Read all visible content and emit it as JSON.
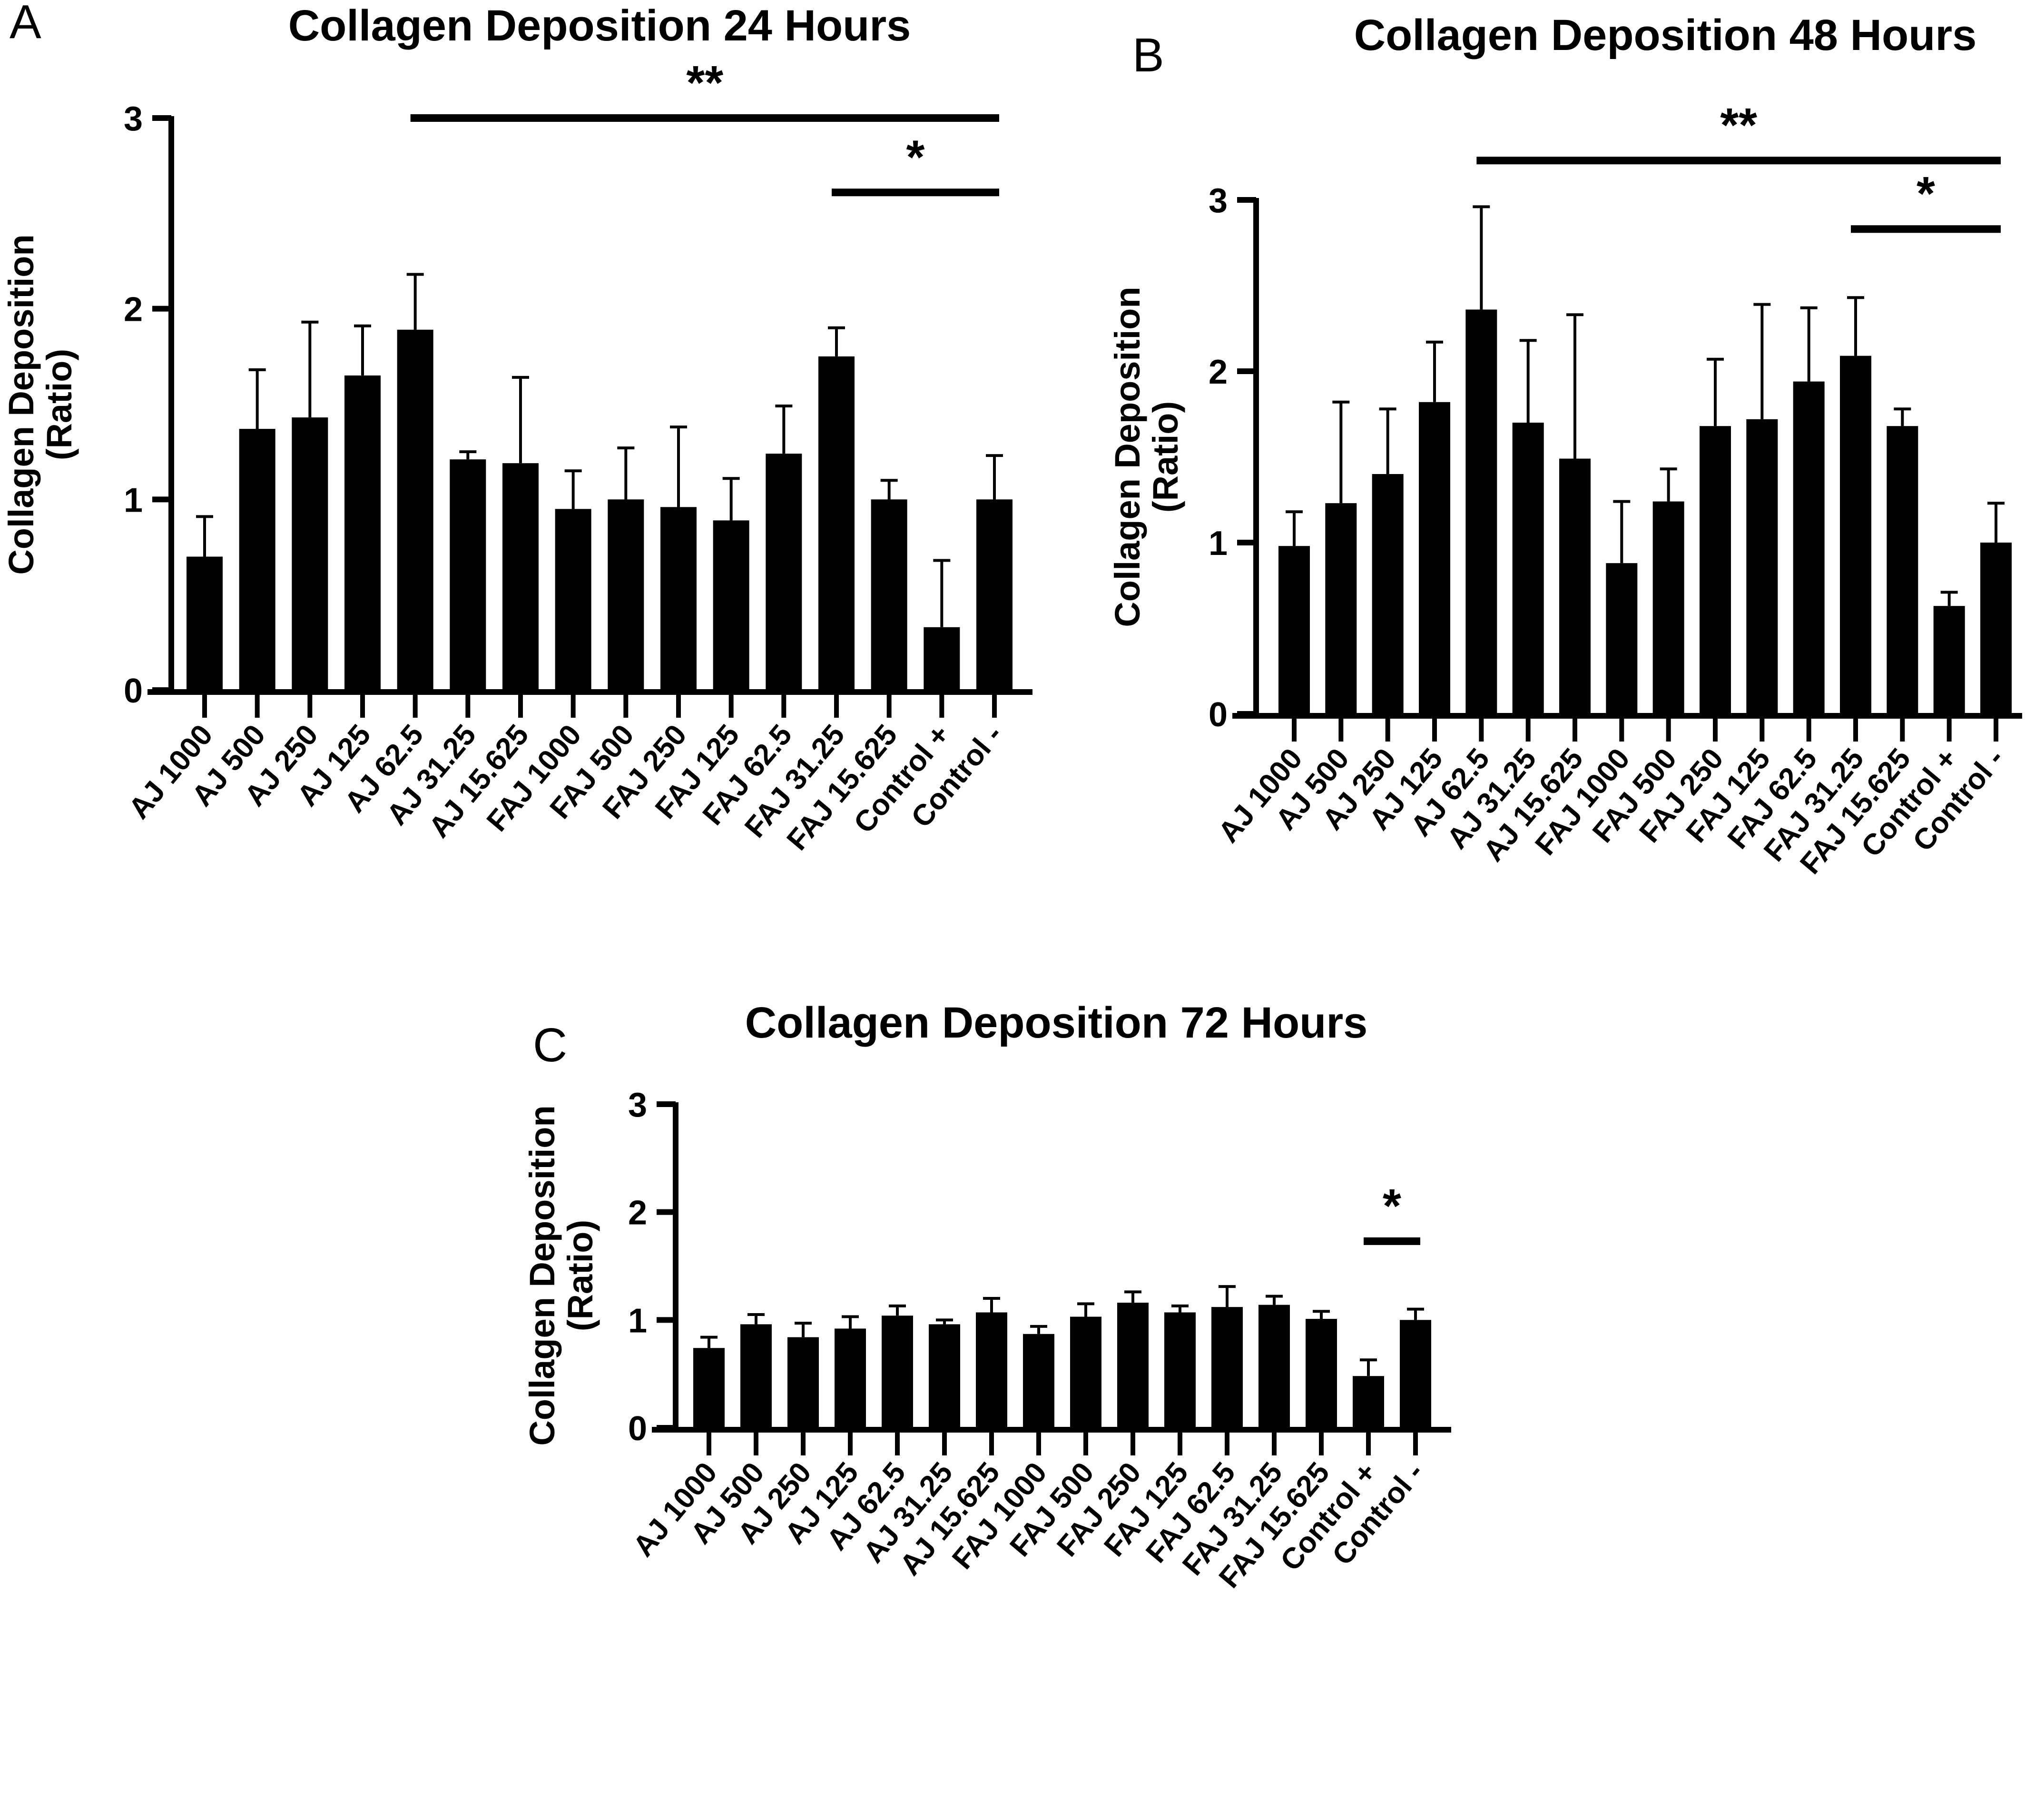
{
  "chart_data": [
    {
      "panel": "A",
      "type": "bar",
      "title": "Collagen Deposition 24 Hours",
      "xlabel": "",
      "ylabel": "Collagen Deposition (Ratio)",
      "ylabel_lines": [
        "Collagen Deposition",
        "(Ratio)"
      ],
      "ylim": [
        0,
        3
      ],
      "yticks": [
        0,
        1,
        2,
        3
      ],
      "grid": false,
      "categories": [
        "AJ 1000",
        "AJ 500",
        "AJ 250",
        "AJ 125",
        "AJ 62.5",
        "AJ 31.25",
        "AJ 15.625",
        "FAJ 1000",
        "FAJ 500",
        "FAJ 250",
        "FAJ 125",
        "FAJ 62.5",
        "FAJ 31.25",
        "FAJ 15.625",
        "Control +",
        "Control -"
      ],
      "values": [
        0.7,
        1.37,
        1.43,
        1.65,
        1.89,
        1.21,
        1.19,
        0.95,
        1.0,
        0.96,
        0.89,
        1.24,
        1.75,
        1.0,
        0.33,
        1.0
      ],
      "error_upper": [
        0.91,
        1.68,
        1.93,
        1.91,
        2.18,
        1.25,
        1.64,
        1.15,
        1.27,
        1.38,
        1.11,
        1.49,
        1.9,
        1.1,
        0.68,
        1.23
      ],
      "significance": [
        {
          "label": "**",
          "from": "AJ 62.5",
          "to": "Control -",
          "level": 3.0
        },
        {
          "label": "*",
          "from": "FAJ 31.25",
          "to": "Control -",
          "level": 2.61
        }
      ]
    },
    {
      "panel": "B",
      "type": "bar",
      "title": "Collagen Deposition 48 Hours",
      "xlabel": "",
      "ylabel": "Collagen Deposition (Ratio)",
      "ylabel_lines": [
        "Collagen Deposition",
        "(Ratio)"
      ],
      "ylim": [
        0,
        3
      ],
      "yticks": [
        0,
        1,
        2,
        3
      ],
      "grid": false,
      "categories": [
        "AJ 1000",
        "AJ 500",
        "AJ 250",
        "AJ 125",
        "AJ 62.5",
        "AJ 31.25",
        "AJ 15.625",
        "FAJ 1000",
        "FAJ 500",
        "FAJ 250",
        "FAJ 125",
        "FAJ 62.5",
        "FAJ 31.25",
        "FAJ 15.625",
        "Control +",
        "Control -"
      ],
      "values": [
        0.98,
        1.23,
        1.4,
        1.82,
        2.36,
        1.7,
        1.49,
        0.88,
        1.24,
        1.68,
        1.72,
        1.94,
        2.09,
        1.68,
        0.63,
        1.0
      ],
      "error_upper": [
        1.18,
        1.82,
        1.78,
        2.17,
        2.96,
        2.18,
        2.33,
        1.24,
        1.43,
        2.07,
        2.39,
        2.37,
        2.43,
        1.78,
        0.71,
        1.23
      ],
      "significance": [
        {
          "label": "**",
          "from": "AJ 62.5",
          "to": "Control -",
          "level": 3.23
        },
        {
          "label": "*",
          "from": "FAJ 31.25",
          "to": "Control -",
          "level": 2.83
        }
      ]
    },
    {
      "panel": "C",
      "type": "bar",
      "title": "Collagen Deposition 72 Hours",
      "xlabel": "",
      "ylabel": "Collagen Deposition (Ratio)",
      "ylabel_lines": [
        "Collagen Deposition",
        "(Ratio)"
      ],
      "ylim": [
        0,
        3
      ],
      "yticks": [
        0,
        1,
        2,
        3
      ],
      "grid": false,
      "categories": [
        "AJ 1000",
        "AJ 500",
        "AJ 250",
        "AJ 125",
        "AJ 62.5",
        "AJ 31.25",
        "AJ 15.625",
        "FAJ 1000",
        "FAJ 500",
        "FAJ 250",
        "FAJ 125",
        "FAJ 62.5",
        "FAJ 31.25",
        "FAJ 15.625",
        "Control +",
        "Control -"
      ],
      "values": [
        0.74,
        0.96,
        0.84,
        0.92,
        1.04,
        0.96,
        1.07,
        0.87,
        1.03,
        1.16,
        1.07,
        1.12,
        1.14,
        1.01,
        0.48,
        1.0
      ],
      "error_upper": [
        0.84,
        1.05,
        0.97,
        1.03,
        1.13,
        1.0,
        1.2,
        0.94,
        1.15,
        1.26,
        1.13,
        1.31,
        1.22,
        1.08,
        0.63,
        1.1
      ],
      "significance": [
        {
          "label": "*",
          "from": "Control +",
          "to": "Control -",
          "level": 1.73
        }
      ]
    }
  ],
  "panels": {
    "a": {
      "letter": "A",
      "title": "Collagen Deposition 24 Hours",
      "ylabel_line1": "Collagen Deposition",
      "ylabel_line2": "(Ratio)"
    },
    "b": {
      "letter": "B",
      "title": "Collagen Deposition 48 Hours",
      "ylabel_line1": "Collagen Deposition",
      "ylabel_line2": "(Ratio)"
    },
    "c": {
      "letter": "C",
      "title": "Collagen Deposition 72 Hours",
      "ylabel_line1": "Collagen Deposition",
      "ylabel_line2": "(Ratio)"
    }
  },
  "colors": {
    "bar": "#000000",
    "axis": "#000000",
    "background": "#ffffff"
  }
}
